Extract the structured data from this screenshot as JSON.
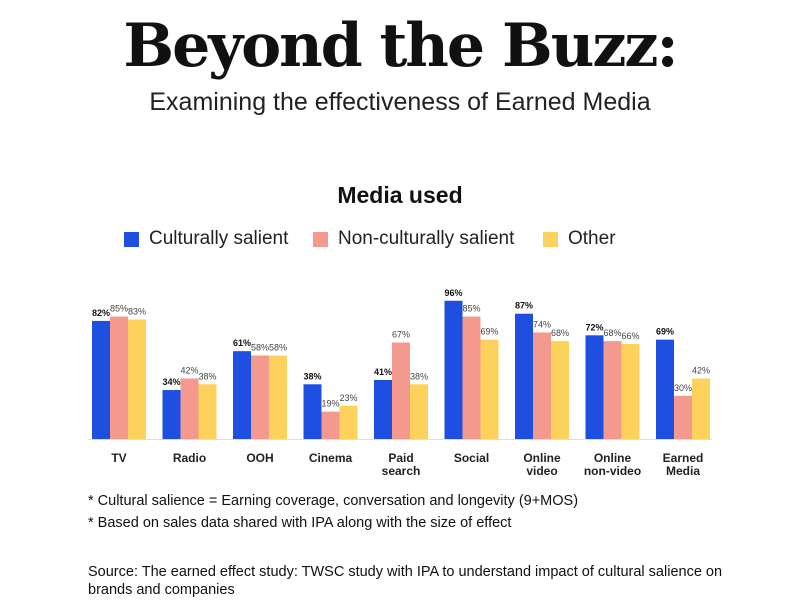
{
  "header": {
    "title": "Beyond the Buzz:",
    "subtitle": "Examining the effectiveness of Earned Media"
  },
  "chart_data": {
    "type": "bar",
    "title": "Media used",
    "categories": [
      "TV",
      "Radio",
      "OOH",
      "Cinema",
      "Paid search",
      "Social",
      "Online video",
      "Online non-video",
      "Earned Media"
    ],
    "series": [
      {
        "name": "Culturally salient",
        "color": "#1f4fe0",
        "values": [
          82,
          34,
          61,
          38,
          41,
          96,
          87,
          72,
          69
        ]
      },
      {
        "name": "Non-culturally salient",
        "color": "#f4998d",
        "values": [
          85,
          42,
          58,
          19,
          67,
          85,
          74,
          68,
          30
        ]
      },
      {
        "name": "Other",
        "color": "#fcd25c",
        "values": [
          83,
          38,
          58,
          23,
          38,
          69,
          68,
          66,
          42
        ]
      }
    ],
    "value_labels": [
      [
        "82%",
        "34%",
        "61%",
        "38%",
        "41%",
        "96%",
        "87%",
        "72%",
        "69%"
      ],
      [
        "85%",
        "42%",
        "58%",
        "19%",
        "67%",
        "85%",
        "74%",
        "68%",
        "30%"
      ],
      [
        "83%",
        "38%",
        "58%",
        "23%",
        "38%",
        "69%",
        "68%",
        "66%",
        "42%"
      ]
    ],
    "ylim": [
      0,
      100
    ],
    "grid": false,
    "legend_position": "top"
  },
  "notes": {
    "salience": "* Cultural salience = Earning coverage, conversation and longevity (9+MOS)",
    "sales": "* Based on sales data shared with IPA along with the size of effect"
  },
  "source": "Source: The earned effect study: TWSC study with IPA to understand impact of cultural salience on brands and companies"
}
